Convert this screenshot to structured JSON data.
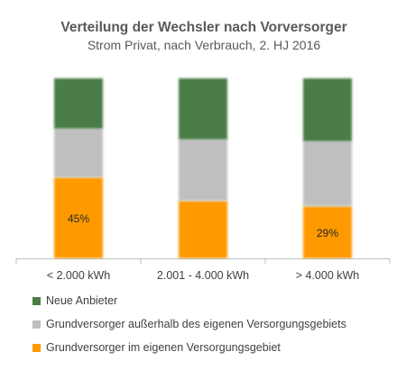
{
  "chart_data": {
    "type": "bar",
    "stacked": true,
    "percent": true,
    "title": "Verteilung der Wechsler nach Vorversorger",
    "subtitle": "Strom Privat, nach Verbrauch, 2. HJ 2016",
    "categories": [
      "< 2.000 kWh",
      "2.001 - 4.000 kWh",
      "> 4.000 kWh"
    ],
    "ylim": [
      0,
      100
    ],
    "grid": false,
    "legend_position": "bottom",
    "series": [
      {
        "name": "Grundversorger im eigenen Versorgungsgebiet",
        "color": "#ff9900",
        "values": [
          45,
          32,
          29
        ],
        "labels": [
          "45%",
          "",
          "29%"
        ]
      },
      {
        "name": "Grundversorger außerhalb des eigenen Versorgungsgebiets",
        "color": "#bfbfbf",
        "values": [
          27,
          34,
          36
        ],
        "labels": [
          "",
          "",
          ""
        ]
      },
      {
        "name": "Neue Anbieter",
        "color": "#4a7c46",
        "values": [
          28,
          34,
          35
        ],
        "labels": [
          "",
          "",
          ""
        ]
      }
    ]
  }
}
